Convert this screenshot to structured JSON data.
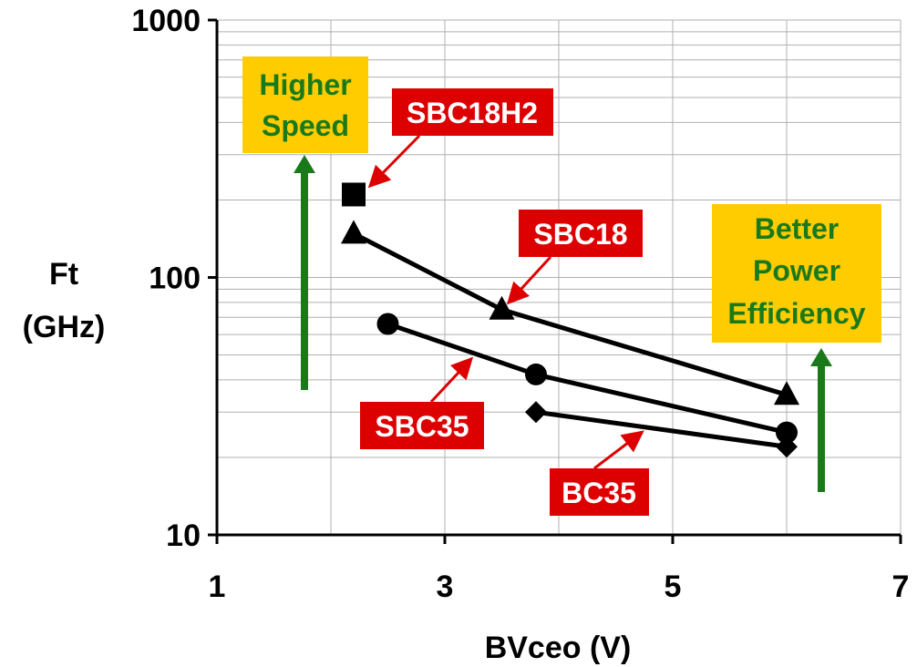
{
  "chart_data": {
    "type": "scatter",
    "xlabel": "BVceo (V)",
    "ylabel_lines": [
      "Ft",
      "(GHz)"
    ],
    "xlim": [
      1,
      7
    ],
    "ylim": [
      10,
      1000
    ],
    "y_scale": "log",
    "grid": true,
    "x_ticks": [
      "1",
      "3",
      "5",
      "7"
    ],
    "y_ticks": [
      "10",
      "100",
      "1000"
    ],
    "series": [
      {
        "name": "SBC18H2",
        "marker": "square",
        "points": [
          [
            2.2,
            210
          ]
        ]
      },
      {
        "name": "SBC18",
        "marker": "triangle",
        "points": [
          [
            2.2,
            148
          ],
          [
            3.5,
            75
          ],
          [
            6.0,
            35
          ]
        ]
      },
      {
        "name": "SBC35",
        "marker": "circle",
        "points": [
          [
            2.5,
            66
          ],
          [
            3.8,
            42
          ],
          [
            6.0,
            25
          ]
        ]
      },
      {
        "name": "BC35",
        "marker": "diamond",
        "points": [
          [
            3.8,
            30
          ],
          [
            6.0,
            22
          ]
        ]
      }
    ],
    "annotations": [
      {
        "lines": [
          "Higher",
          "Speed"
        ]
      },
      {
        "lines": [
          "Better",
          "Power",
          "Efficiency"
        ]
      }
    ]
  },
  "colors": {
    "label_bg": "#dd0000",
    "label_text": "#ffffff",
    "callout_bg": "#ffcc00",
    "callout_text": "#1a7a1a",
    "arrow_green": "#1a7a1a",
    "arrow_red": "#dd0000",
    "grid": "#b0b0b0",
    "series": "#000000"
  }
}
